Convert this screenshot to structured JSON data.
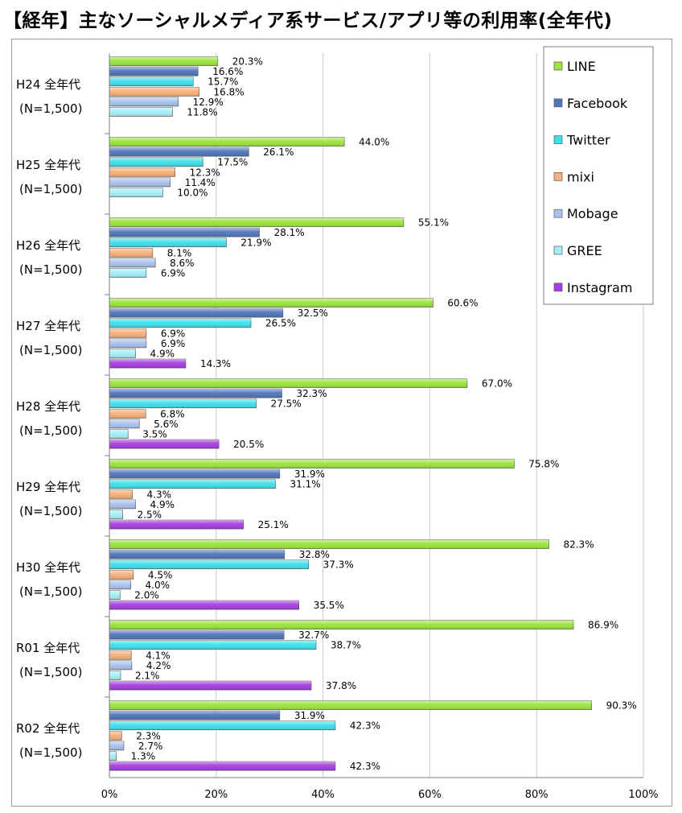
{
  "title": "【経年】主なソーシャルメディア系サービス/アプリ等の利用率(全年代)",
  "chart_data": {
    "type": "bar",
    "orientation": "horizontal",
    "title": "【経年】主なソーシャルメディア系サービス/アプリ等の利用率(全年代)",
    "xlim": [
      0,
      100
    ],
    "x_ticks": [
      "0%",
      "20%",
      "40%",
      "60%",
      "80%",
      "100%"
    ],
    "grid": "vertical",
    "legend_position": "top-right",
    "groups": [
      {
        "label": "H24 全年代",
        "n": "(N=1,500)"
      },
      {
        "label": "H25 全年代",
        "n": "(N=1,500)"
      },
      {
        "label": "H26 全年代",
        "n": "(N=1,500)"
      },
      {
        "label": "H27 全年代",
        "n": "(N=1,500)"
      },
      {
        "label": "H28 全年代",
        "n": "(N=1,500)"
      },
      {
        "label": "H29 全年代",
        "n": "(N=1,500)"
      },
      {
        "label": "H30 全年代",
        "n": "(N=1,500)"
      },
      {
        "label": "R01 全年代",
        "n": "(N=1,500)"
      },
      {
        "label": "R02 全年代",
        "n": "(N=1,500)"
      }
    ],
    "series": [
      {
        "name": "LINE",
        "color": "#9BE53C",
        "values": [
          20.3,
          44.0,
          55.1,
          60.6,
          67.0,
          75.8,
          82.3,
          86.9,
          90.3
        ]
      },
      {
        "name": "Facebook",
        "color": "#4F76B8",
        "values": [
          16.6,
          26.1,
          28.1,
          32.5,
          32.3,
          31.9,
          32.8,
          32.7,
          31.9
        ]
      },
      {
        "name": "Twitter",
        "color": "#3FE0EE",
        "values": [
          15.7,
          17.5,
          21.9,
          26.5,
          27.5,
          31.1,
          37.3,
          38.7,
          42.3
        ]
      },
      {
        "name": "mixi",
        "color": "#F7B07A",
        "values": [
          16.8,
          12.3,
          8.1,
          6.9,
          6.8,
          4.3,
          4.5,
          4.1,
          2.3
        ]
      },
      {
        "name": "Mobage",
        "color": "#A9C2EC",
        "values": [
          12.9,
          11.4,
          8.6,
          6.9,
          5.6,
          4.9,
          4.0,
          4.2,
          2.7
        ]
      },
      {
        "name": "GREE",
        "color": "#A6EFF7",
        "values": [
          11.8,
          10.0,
          6.9,
          4.9,
          3.5,
          2.5,
          2.0,
          2.1,
          1.3
        ]
      },
      {
        "name": "Instagram",
        "color": "#A53DE0",
        "values": [
          null,
          null,
          null,
          14.3,
          20.5,
          25.1,
          35.5,
          37.8,
          42.3
        ]
      }
    ],
    "value_labels": [
      [
        "20.3%",
        "44.0%",
        "55.1%",
        "60.6%",
        "67.0%",
        "75.8%",
        "82.3%",
        "86.9%",
        "90.3%"
      ],
      [
        "16.6%",
        "26.1%",
        "28.1%",
        "32.5%",
        "32.3%",
        "31.9%",
        "32.8%",
        "32.7%",
        "31.9%"
      ],
      [
        "15.7%",
        "17.5%",
        "21.9%",
        "26.5%",
        "27.5%",
        "31.1%",
        "37.3%",
        "38.7%",
        "42.3%"
      ],
      [
        "16.8%",
        "12.3%",
        "8.1%",
        "6.9%",
        "6.8%",
        "4.3%",
        "4.5%",
        "4.1%",
        "2.3%"
      ],
      [
        "12.9%",
        "11.4%",
        "8.6%",
        "6.9%",
        "5.6%",
        "4.9%",
        "4.0%",
        "4.2%",
        "2.7%"
      ],
      [
        "11.8%",
        "10.0%",
        "6.9%",
        "4.9%",
        "3.5%",
        "2.5%",
        "2.0%",
        "2.1%",
        "1.3%"
      ],
      [
        null,
        null,
        null,
        "14.3%",
        "20.5%",
        "25.1%",
        "35.5%",
        "37.8%",
        "42.3%"
      ]
    ]
  }
}
